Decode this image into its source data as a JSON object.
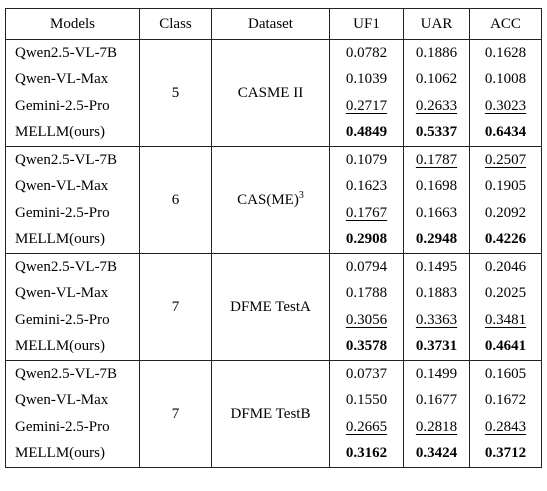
{
  "table": {
    "headers": [
      "Models",
      "Class",
      "Dataset",
      "UF1",
      "UAR",
      "ACC"
    ],
    "groups": [
      {
        "class": "5",
        "dataset": "CASME II",
        "dataset_sup": "",
        "rows": [
          {
            "model": "Qwen2.5-VL-7B",
            "uf1": "0.0782",
            "uar": "0.1886",
            "acc": "0.1628",
            "style": [
              "",
              "",
              ""
            ]
          },
          {
            "model": "Qwen-VL-Max",
            "uf1": "0.1039",
            "uar": "0.1062",
            "acc": "0.1008",
            "style": [
              "",
              "",
              ""
            ]
          },
          {
            "model": "Gemini-2.5-Pro",
            "uf1": "0.2717",
            "uar": "0.2633",
            "acc": "0.3023",
            "style": [
              "underline",
              "underline",
              "underline"
            ]
          },
          {
            "model": "MELLM(ours)",
            "uf1": "0.4849",
            "uar": "0.5337",
            "acc": "0.6434",
            "style": [
              "bold",
              "bold",
              "bold"
            ]
          }
        ]
      },
      {
        "class": "6",
        "dataset": "CAS(ME)",
        "dataset_sup": "3",
        "rows": [
          {
            "model": "Qwen2.5-VL-7B",
            "uf1": "0.1079",
            "uar": "0.1787",
            "acc": "0.2507",
            "style": [
              "",
              "underline",
              "underline"
            ]
          },
          {
            "model": "Qwen-VL-Max",
            "uf1": "0.1623",
            "uar": "0.1698",
            "acc": "0.1905",
            "style": [
              "",
              "",
              ""
            ]
          },
          {
            "model": "Gemini-2.5-Pro",
            "uf1": "0.1767",
            "uar": "0.1663",
            "acc": "0.2092",
            "style": [
              "underline",
              "",
              ""
            ]
          },
          {
            "model": "MELLM(ours)",
            "uf1": "0.2908",
            "uar": "0.2948",
            "acc": "0.4226",
            "style": [
              "bold",
              "bold",
              "bold"
            ]
          }
        ]
      },
      {
        "class": "7",
        "dataset": "DFME TestA",
        "dataset_sup": "",
        "rows": [
          {
            "model": "Qwen2.5-VL-7B",
            "uf1": "0.0794",
            "uar": "0.1495",
            "acc": "0.2046",
            "style": [
              "",
              "",
              ""
            ]
          },
          {
            "model": "Qwen-VL-Max",
            "uf1": "0.1788",
            "uar": "0.1883",
            "acc": "0.2025",
            "style": [
              "",
              "",
              ""
            ]
          },
          {
            "model": "Gemini-2.5-Pro",
            "uf1": "0.3056",
            "uar": "0.3363",
            "acc": "0.3481",
            "style": [
              "underline",
              "underline",
              "underline"
            ]
          },
          {
            "model": "MELLM(ours)",
            "uf1": "0.3578",
            "uar": "0.3731",
            "acc": "0.4641",
            "style": [
              "bold",
              "bold",
              "bold"
            ]
          }
        ]
      },
      {
        "class": "7",
        "dataset": "DFME TestB",
        "dataset_sup": "",
        "rows": [
          {
            "model": "Qwen2.5-VL-7B",
            "uf1": "0.0737",
            "uar": "0.1499",
            "acc": "0.1605",
            "style": [
              "",
              "",
              ""
            ]
          },
          {
            "model": "Qwen-VL-Max",
            "uf1": "0.1550",
            "uar": "0.1677",
            "acc": "0.1672",
            "style": [
              "",
              "",
              ""
            ]
          },
          {
            "model": "Gemini-2.5-Pro",
            "uf1": "0.2665",
            "uar": "0.2818",
            "acc": "0.2843",
            "style": [
              "underline",
              "underline",
              "underline"
            ]
          },
          {
            "model": "MELLM(ours)",
            "uf1": "0.3162",
            "uar": "0.3424",
            "acc": "0.3712",
            "style": [
              "bold",
              "bold",
              "bold"
            ]
          }
        ]
      }
    ]
  }
}
